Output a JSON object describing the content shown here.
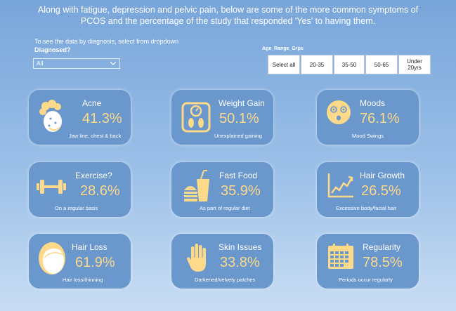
{
  "header": {
    "line1": "Along with fatigue, depression and pelvic pain, below are some of the more common symptoms of",
    "line2": "PCOS and the percentage of the study that responded 'Yes' to having them."
  },
  "filter": {
    "hint": "To see the data by diagnosis, select from dropdown",
    "label": "Diagnosed?",
    "selected": "All"
  },
  "age": {
    "label": "Age_Range_Grps",
    "buttons": [
      "Select all",
      "20-35",
      "35-50",
      "50-65",
      "Under 20yrs"
    ]
  },
  "colors": {
    "background": "#78A5DA",
    "card": "#6A97CC",
    "accent": "#FDD98A"
  },
  "cards": [
    {
      "title": "Acne",
      "percent": "41.3%",
      "subtitle": "Jaw line, chest & back",
      "icon": "acne-face-icon"
    },
    {
      "title": "Weight Gain",
      "percent": "50.1%",
      "subtitle": "Unexplained gaining",
      "icon": "scale-icon"
    },
    {
      "title": "Moods",
      "percent": "76.1%",
      "subtitle": "Mood Swings",
      "icon": "dizzy-face-icon"
    },
    {
      "title": "Exercise?",
      "percent": "28.6%",
      "subtitle": "On a regular basis",
      "icon": "dumbbell-icon"
    },
    {
      "title": "Fast Food",
      "percent": "35.9%",
      "subtitle": "As part of regular diet",
      "icon": "fast-food-icon"
    },
    {
      "title": "Hair Growth",
      "percent": "26.5%",
      "subtitle": "Excessive body/facial hair",
      "icon": "growth-chart-icon"
    },
    {
      "title": "Hair Loss",
      "percent": "61.9%",
      "subtitle": "Hair loss/thinning",
      "icon": "balding-head-icon"
    },
    {
      "title": "Skin Issues",
      "percent": "33.8%",
      "subtitle": "Darkened/velvety patches",
      "icon": "hand-icon"
    },
    {
      "title": "Regularity",
      "percent": "78.5%",
      "subtitle": "Periods occur regularly",
      "icon": "calendar-icon"
    }
  ]
}
